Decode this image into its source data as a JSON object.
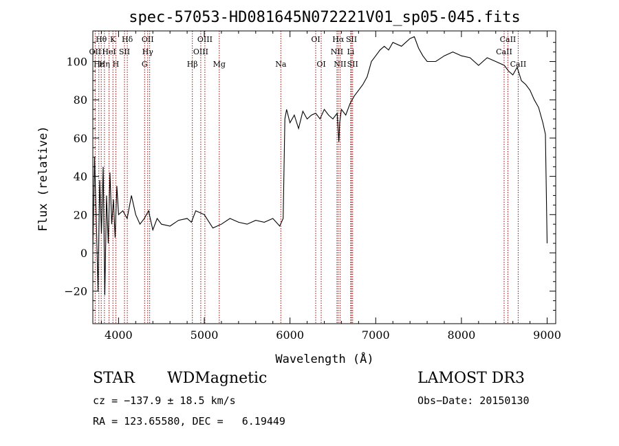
{
  "chart_data": {
    "type": "line",
    "title": "spec-57053-HD081645N072221V01_sp05-045.fits",
    "xlabel": "Wavelength (Å)",
    "ylabel": "Flux (relative)",
    "xlim": [
      3700,
      9100
    ],
    "ylim": [
      -37,
      116
    ],
    "x_ticks": [
      4000,
      5000,
      6000,
      7000,
      8000,
      9000
    ],
    "y_ticks": [
      -20,
      0,
      20,
      40,
      60,
      80,
      100
    ],
    "grid": false,
    "series": [
      {
        "color": "#000000",
        "x": [
          3700,
          3720,
          3740,
          3760,
          3780,
          3800,
          3820,
          3840,
          3860,
          3880,
          3900,
          3920,
          3940,
          3960,
          3980,
          4000,
          4050,
          4100,
          4150,
          4200,
          4250,
          4300,
          4350,
          4400,
          4450,
          4500,
          4600,
          4700,
          4800,
          4850,
          4900,
          5000,
          5100,
          5200,
          5300,
          5400,
          5500,
          5600,
          5700,
          5800,
          5880,
          5920,
          5940,
          5960,
          6000,
          6050,
          6100,
          6150,
          6200,
          6250,
          6300,
          6350,
          6400,
          6450,
          6500,
          6550,
          6570,
          6580,
          6600,
          6650,
          6700,
          6750,
          6800,
          6850,
          6900,
          6950,
          7000,
          7050,
          7100,
          7150,
          7200,
          7300,
          7400,
          7450,
          7500,
          7550,
          7600,
          7700,
          7800,
          7900,
          8000,
          8100,
          8200,
          8300,
          8400,
          8500,
          8550,
          8600,
          8650,
          8700,
          8750,
          8800,
          8850,
          8900,
          8950,
          8980,
          9000
        ],
        "y": [
          2,
          50,
          18,
          -20,
          38,
          10,
          45,
          -22,
          30,
          5,
          42,
          15,
          28,
          8,
          35,
          20,
          22,
          18,
          30,
          20,
          15,
          18,
          22,
          12,
          18,
          15,
          14,
          17,
          18,
          16,
          22,
          20,
          13,
          15,
          18,
          16,
          15,
          17,
          16,
          18,
          14,
          18,
          70,
          75,
          68,
          72,
          65,
          74,
          70,
          72,
          73,
          70,
          75,
          72,
          70,
          73,
          58,
          68,
          75,
          72,
          78,
          82,
          85,
          88,
          92,
          100,
          103,
          106,
          108,
          106,
          110,
          108,
          112,
          113,
          107,
          103,
          100,
          100,
          103,
          105,
          103,
          102,
          98,
          102,
          100,
          98,
          95,
          93,
          97,
          90,
          88,
          85,
          80,
          76,
          68,
          62,
          5
        ]
      }
    ],
    "annotations": {
      "row1": [
        {
          "text": "Hθ",
          "x": 3798
        },
        {
          "text": "K",
          "x": 3934
        },
        {
          "text": "Hδ",
          "x": 4102
        },
        {
          "text": "OII",
          "x": 4340
        },
        {
          "text": "OIII",
          "x": 5007
        },
        {
          "text": "OI",
          "x": 6300
        },
        {
          "text": "Hα",
          "x": 6563
        },
        {
          "text": "SII",
          "x": 6717
        },
        {
          "text": "CaII",
          "x": 8542
        }
      ],
      "row2": [
        {
          "text": "OII",
          "x": 3727
        },
        {
          "text": "HeI",
          "x": 3889
        },
        {
          "text": "SII",
          "x": 4069
        },
        {
          "text": "Hγ",
          "x": 4340
        },
        {
          "text": "OIII",
          "x": 4959
        },
        {
          "text": "NII",
          "x": 6548
        },
        {
          "text": "Li",
          "x": 6708
        },
        {
          "text": "CaII",
          "x": 8498
        }
      ],
      "row3": [
        {
          "text": "Hε",
          "x": 3770
        },
        {
          "text": "Hη",
          "x": 3835
        },
        {
          "text": "H",
          "x": 3968
        },
        {
          "text": "G",
          "x": 4304
        },
        {
          "text": "Hβ",
          "x": 4861
        },
        {
          "text": "Mg",
          "x": 5175
        },
        {
          "text": "Na",
          "x": 5893
        },
        {
          "text": "OI",
          "x": 6364
        },
        {
          "text": "NII",
          "x": 6584
        },
        {
          "text": "SII",
          "x": 6731
        },
        {
          "text": "CaII",
          "x": 8662
        }
      ]
    },
    "line_markers": [
      3727,
      3770,
      3798,
      3835,
      3889,
      3934,
      3968,
      4069,
      4102,
      4304,
      4340,
      4363,
      4861,
      4959,
      5007,
      5175,
      5893,
      6300,
      6364,
      6548,
      6563,
      6584,
      6708,
      6717,
      6731,
      8498,
      8542,
      8662
    ],
    "marker_color": "#990000"
  },
  "footer": {
    "class_label": "STAR",
    "subclass_label": "WDMagnetic",
    "survey": "LAMOST DR3",
    "cz": "cz = −137.9 ± 18.5 km/s",
    "obs_date": "Obs−Date: 20150130",
    "coords": "RA = 123.65580, DEC =   6.19449"
  }
}
